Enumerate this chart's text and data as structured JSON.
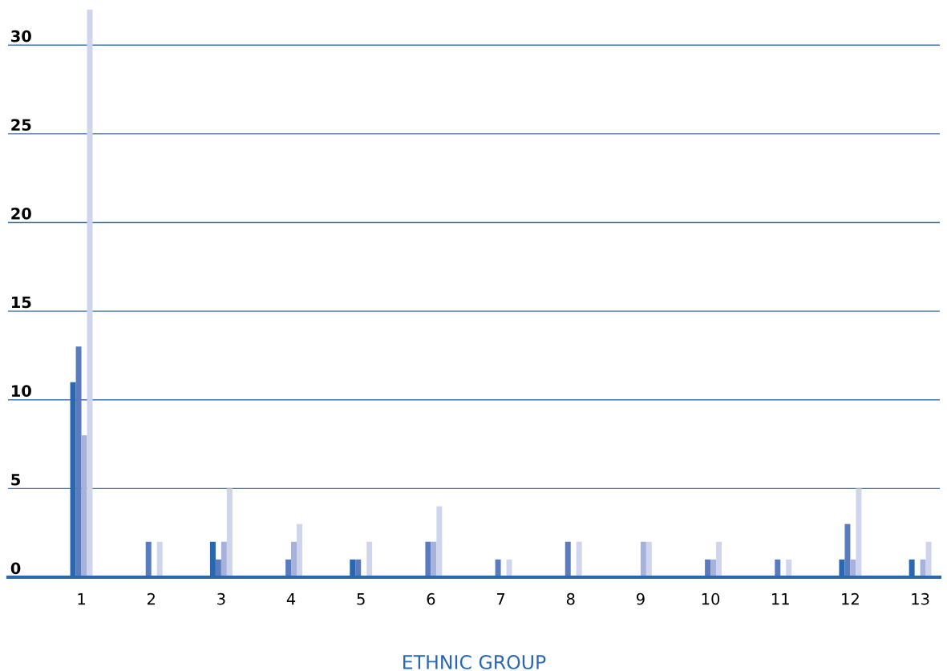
{
  "chart_data": {
    "type": "bar",
    "xlabel": "ETHNIC GROUP",
    "categories": [
      "1",
      "2",
      "3",
      "4",
      "5",
      "6",
      "7",
      "8",
      "9",
      "10",
      "11",
      "12",
      "13"
    ],
    "series": [
      {
        "color": "#2a67b1",
        "values": [
          11,
          0,
          2,
          0,
          1,
          0,
          0,
          0,
          0,
          0,
          0,
          1,
          1
        ]
      },
      {
        "color": "#5b7bbf",
        "values": [
          13,
          2,
          1,
          1,
          1,
          2,
          1,
          2,
          0,
          1,
          1,
          3,
          0
        ]
      },
      {
        "color": "#a6b2dc",
        "values": [
          8,
          0,
          2,
          2,
          0,
          2,
          0,
          0,
          2,
          1,
          0,
          1,
          1
        ]
      },
      {
        "color": "#cfd5ec",
        "values": [
          32,
          2,
          5,
          3,
          2,
          4,
          1,
          2,
          2,
          2,
          1,
          5,
          2
        ]
      }
    ],
    "ylim": [
      0,
      32
    ],
    "yticks": [
      0,
      5,
      10,
      15,
      20,
      25,
      30
    ],
    "grid": "y"
  }
}
